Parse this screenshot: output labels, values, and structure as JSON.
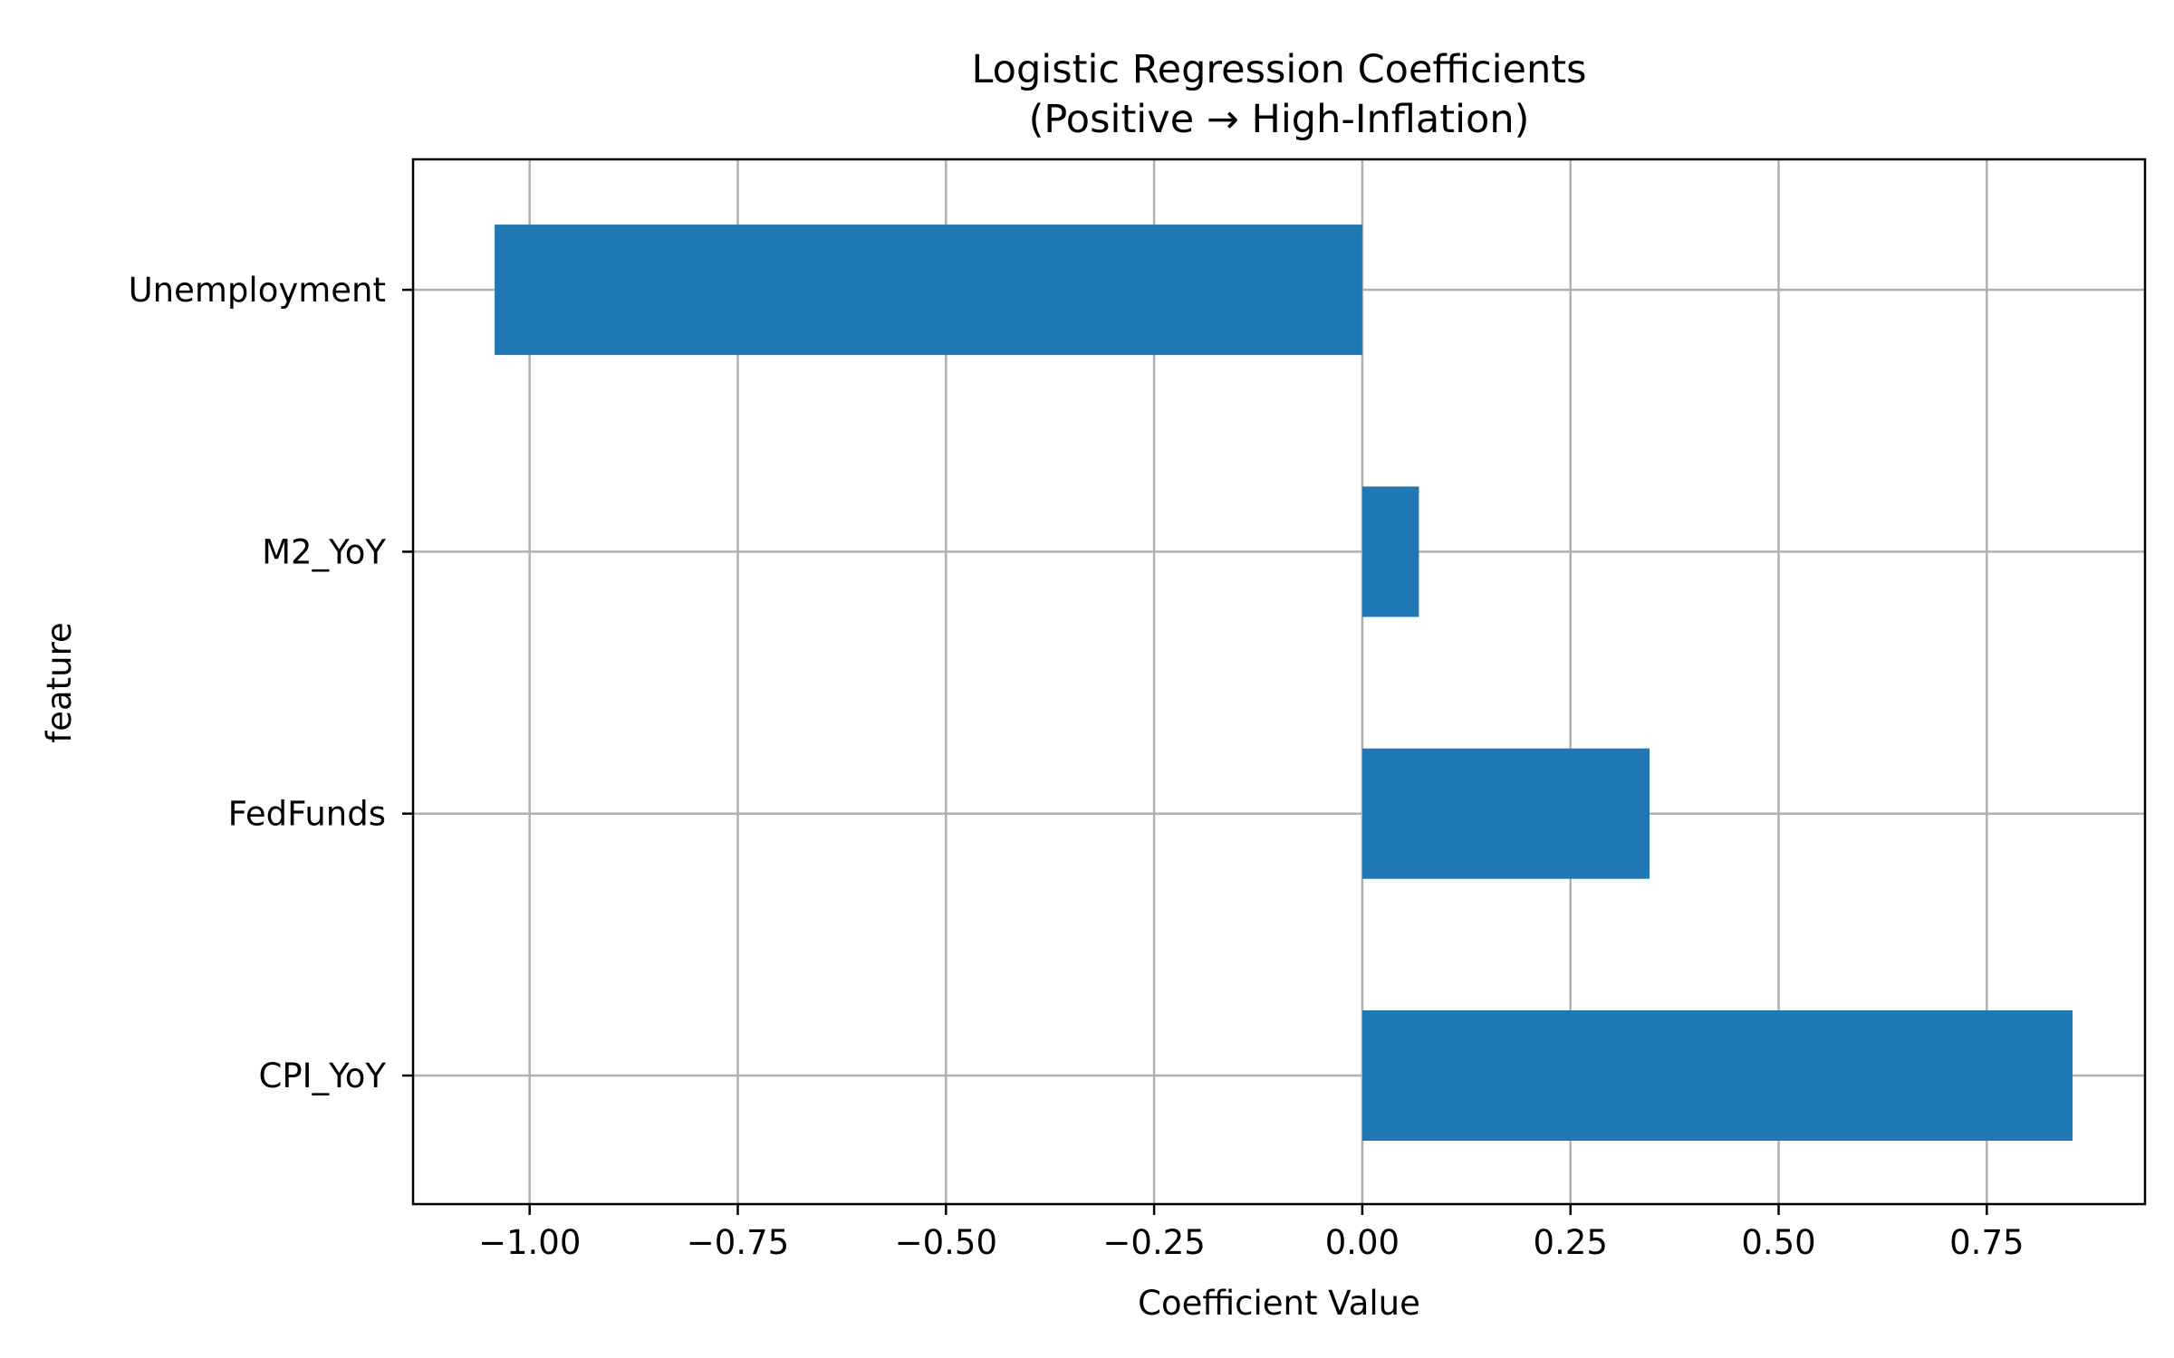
{
  "chart_data": {
    "type": "bar",
    "orientation": "horizontal",
    "title_line1": "Logistic Regression Coefficients",
    "title_line2": "(Positive → High-Inflation)",
    "xlabel": "Coefficient Value",
    "ylabel": "feature",
    "categories": [
      "CPI_YoY",
      "FedFunds",
      "M2_YoY",
      "Unemployment"
    ],
    "values": [
      0.853,
      0.345,
      0.068,
      -1.042
    ],
    "xlim": [
      -1.14,
      0.94
    ],
    "xticks": [
      -1.0,
      -0.75,
      -0.5,
      -0.25,
      0.0,
      0.25,
      0.5,
      0.75
    ],
    "xtick_labels": [
      "−1.00",
      "−0.75",
      "−0.50",
      "−0.25",
      "0.00",
      "0.25",
      "0.50",
      "0.75"
    ],
    "bar_color": "#1f77b4",
    "grid": true,
    "grid_color": "#b0b0b0"
  }
}
